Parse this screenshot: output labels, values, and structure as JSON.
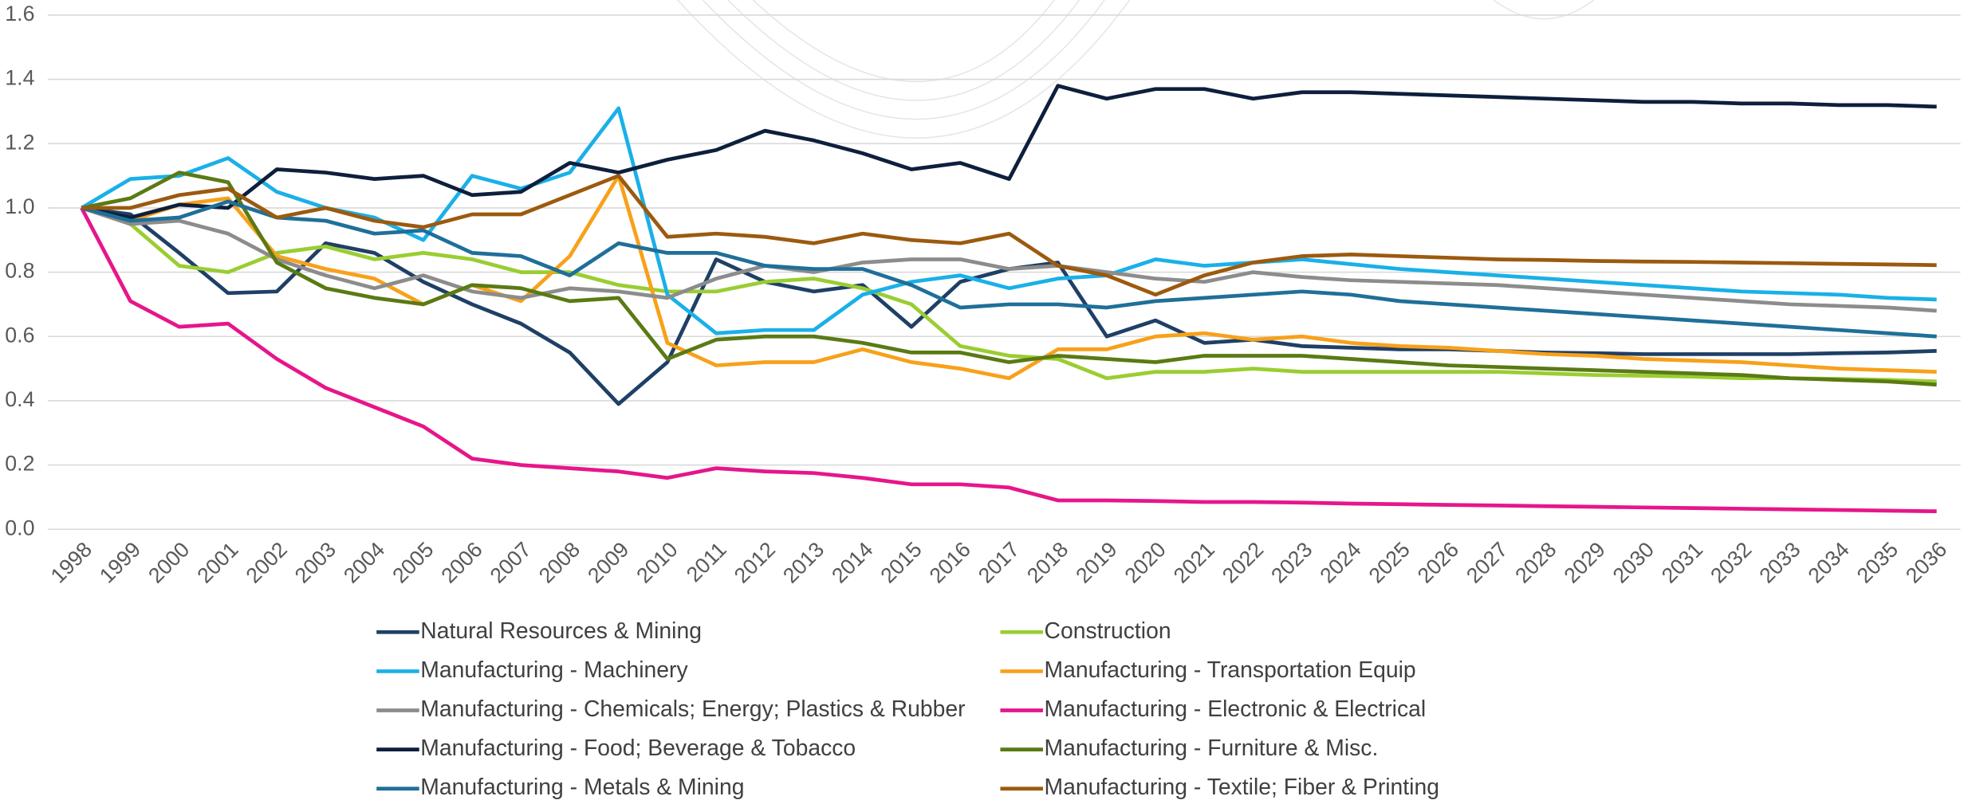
{
  "chart_data": {
    "type": "line",
    "categories": [
      "1998",
      "1999",
      "2000",
      "2001",
      "2002",
      "2003",
      "2004",
      "2005",
      "2006",
      "2007",
      "2008",
      "2009",
      "2010",
      "2011",
      "2012",
      "2013",
      "2014",
      "2015",
      "2016",
      "2017",
      "2018",
      "2019",
      "2020",
      "2021",
      "2022",
      "2023",
      "2024",
      "2025",
      "2026",
      "2027",
      "2028",
      "2029",
      "2030",
      "2031",
      "2032",
      "2033",
      "2034",
      "2035",
      "2036"
    ],
    "ylim": [
      0,
      1.6
    ],
    "yticks": [
      {
        "value": 0,
        "label": "0.0"
      },
      0.2,
      0.4,
      0.6,
      0.8,
      {
        "value": 1,
        "label": "1.0"
      },
      1.2,
      1.4,
      1.6
    ],
    "grid": true,
    "series": [
      {
        "name": "Natural Resources & Mining",
        "color": "#1f3f66",
        "values": [
          1.0,
          0.98,
          0.86,
          0.735,
          0.74,
          0.89,
          0.86,
          0.77,
          0.7,
          0.64,
          0.55,
          0.39,
          0.52,
          0.84,
          0.77,
          0.74,
          0.76,
          0.63,
          0.77,
          0.81,
          0.83,
          0.6,
          0.65,
          0.58,
          0.59,
          0.57,
          0.565,
          0.56,
          0.56,
          0.555,
          0.55,
          0.548,
          0.545,
          0.545,
          0.545,
          0.545,
          0.548,
          0.55,
          0.555
        ]
      },
      {
        "name": "Construction",
        "color": "#9acd32",
        "values": [
          1.0,
          0.95,
          0.82,
          0.8,
          0.86,
          0.88,
          0.84,
          0.86,
          0.84,
          0.8,
          0.8,
          0.76,
          0.74,
          0.74,
          0.77,
          0.78,
          0.75,
          0.7,
          0.57,
          0.54,
          0.53,
          0.47,
          0.49,
          0.49,
          0.5,
          0.49,
          0.49,
          0.49,
          0.49,
          0.49,
          0.485,
          0.48,
          0.478,
          0.475,
          0.47,
          0.47,
          0.468,
          0.465,
          0.46
        ]
      },
      {
        "name": "Manufacturing - Machinery",
        "color": "#1ab0e8",
        "values": [
          1.0,
          1.09,
          1.1,
          1.155,
          1.05,
          1.0,
          0.97,
          0.9,
          1.1,
          1.06,
          1.11,
          1.31,
          0.73,
          0.61,
          0.62,
          0.62,
          0.73,
          0.77,
          0.79,
          0.75,
          0.78,
          0.79,
          0.84,
          0.82,
          0.83,
          0.84,
          0.825,
          0.81,
          0.8,
          0.79,
          0.78,
          0.77,
          0.76,
          0.75,
          0.74,
          0.735,
          0.73,
          0.72,
          0.715
        ]
      },
      {
        "name": "Manufacturing - Transportation Equip",
        "color": "#f7a11a",
        "values": [
          1.0,
          0.96,
          1.01,
          1.03,
          0.85,
          0.81,
          0.78,
          0.7,
          0.76,
          0.71,
          0.85,
          1.1,
          0.58,
          0.51,
          0.52,
          0.52,
          0.56,
          0.52,
          0.5,
          0.47,
          0.56,
          0.56,
          0.6,
          0.61,
          0.59,
          0.6,
          0.58,
          0.57,
          0.565,
          0.555,
          0.545,
          0.54,
          0.53,
          0.525,
          0.52,
          0.51,
          0.5,
          0.495,
          0.49
        ]
      },
      {
        "name": "Manufacturing - Chemicals; Energy; Plastics & Rubber",
        "color": "#8c8c8c",
        "values": [
          1.0,
          0.95,
          0.96,
          0.92,
          0.84,
          0.79,
          0.75,
          0.79,
          0.74,
          0.72,
          0.75,
          0.74,
          0.72,
          0.78,
          0.82,
          0.8,
          0.83,
          0.84,
          0.84,
          0.81,
          0.82,
          0.8,
          0.78,
          0.77,
          0.8,
          0.785,
          0.775,
          0.77,
          0.765,
          0.76,
          0.75,
          0.74,
          0.73,
          0.72,
          0.71,
          0.7,
          0.695,
          0.69,
          0.68
        ]
      },
      {
        "name": "Manufacturing - Electronic & Electrical",
        "color": "#e6168a",
        "values": [
          1.0,
          0.71,
          0.63,
          0.64,
          0.53,
          0.44,
          0.38,
          0.32,
          0.22,
          0.2,
          0.19,
          0.18,
          0.16,
          0.19,
          0.18,
          0.175,
          0.16,
          0.14,
          0.14,
          0.13,
          0.09,
          0.09,
          0.088,
          0.085,
          0.085,
          0.083,
          0.08,
          0.078,
          0.076,
          0.074,
          0.072,
          0.07,
          0.068,
          0.066,
          0.064,
          0.062,
          0.06,
          0.058,
          0.056
        ]
      },
      {
        "name": "Manufacturing - Food; Beverage & Tobacco",
        "color": "#0d1f3c",
        "values": [
          1.0,
          0.97,
          1.01,
          1.0,
          1.12,
          1.11,
          1.09,
          1.1,
          1.04,
          1.05,
          1.14,
          1.11,
          1.15,
          1.18,
          1.24,
          1.21,
          1.17,
          1.12,
          1.14,
          1.09,
          1.38,
          1.34,
          1.37,
          1.37,
          1.34,
          1.36,
          1.36,
          1.355,
          1.35,
          1.345,
          1.34,
          1.335,
          1.33,
          1.33,
          1.325,
          1.325,
          1.32,
          1.32,
          1.315
        ]
      },
      {
        "name": "Manufacturing - Furniture & Misc.",
        "color": "#5a7a14",
        "values": [
          1.0,
          1.03,
          1.11,
          1.08,
          0.83,
          0.75,
          0.72,
          0.7,
          0.76,
          0.75,
          0.71,
          0.72,
          0.53,
          0.59,
          0.6,
          0.6,
          0.58,
          0.55,
          0.55,
          0.52,
          0.54,
          0.53,
          0.52,
          0.54,
          0.54,
          0.54,
          0.53,
          0.52,
          0.51,
          0.505,
          0.5,
          0.495,
          0.49,
          0.485,
          0.48,
          0.47,
          0.465,
          0.46,
          0.45
        ]
      },
      {
        "name": "Manufacturing - Metals & Mining",
        "color": "#1f6f99",
        "values": [
          1.0,
          0.96,
          0.97,
          1.02,
          0.97,
          0.96,
          0.92,
          0.93,
          0.86,
          0.85,
          0.79,
          0.89,
          0.86,
          0.86,
          0.82,
          0.81,
          0.81,
          0.76,
          0.69,
          0.7,
          0.7,
          0.69,
          0.71,
          0.72,
          0.73,
          0.74,
          0.73,
          0.71,
          0.7,
          0.69,
          0.68,
          0.67,
          0.66,
          0.65,
          0.64,
          0.63,
          0.62,
          0.61,
          0.6
        ]
      },
      {
        "name": "Manufacturing - Textile; Fiber & Printing",
        "color": "#9c5a0f",
        "values": [
          1.0,
          1.0,
          1.04,
          1.06,
          0.97,
          1.0,
          0.96,
          0.94,
          0.98,
          0.98,
          1.04,
          1.1,
          0.91,
          0.92,
          0.91,
          0.89,
          0.92,
          0.9,
          0.89,
          0.92,
          0.82,
          0.79,
          0.73,
          0.79,
          0.83,
          0.85,
          0.855,
          0.85,
          0.845,
          0.84,
          0.838,
          0.835,
          0.833,
          0.832,
          0.83,
          0.828,
          0.826,
          0.824,
          0.822
        ]
      }
    ]
  }
}
